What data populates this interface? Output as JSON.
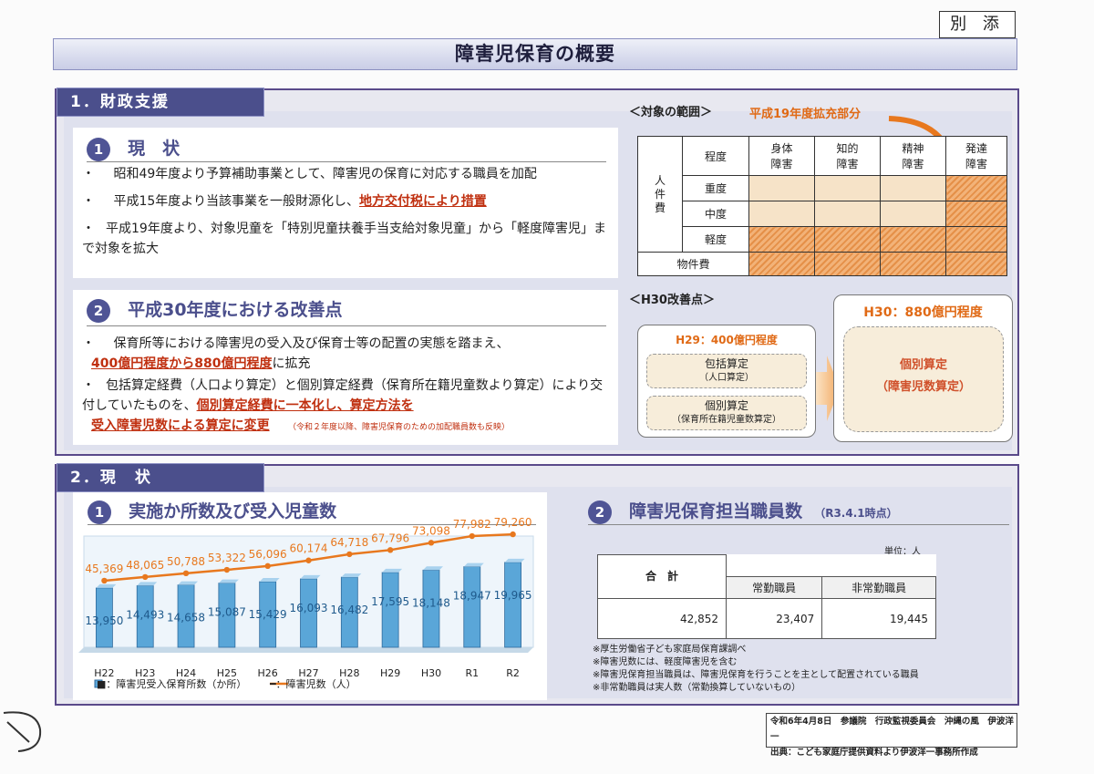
{
  "header": {
    "attachment": "別 添",
    "title": "障害児保育の概要"
  },
  "sec1": {
    "tab": "1．財政支援",
    "current": {
      "num": "1",
      "title": "現　状",
      "bullets": [
        {
          "mark": "・",
          "text": "昭和49年度より予算補助事業として、障害児の保育に対応する職員を加配"
        },
        {
          "mark": "・",
          "pre": "平成15年度より当該事業を一般財源化し、",
          "red": "地方交付税により措置"
        },
        {
          "mark": "・",
          "text": "平成19年度より、対象児童を「特別児童扶養手当支給対象児童」から「軽度障害児」まで対象を拡大"
        }
      ]
    },
    "improve": {
      "num": "2",
      "title": "平成30年度における改善点",
      "b1_mark": "・",
      "b1_text": "保育所等における障害児の受入及び保育士等の配置の実態を踏まえ、",
      "b1_red": "400億円程度から880億円程度",
      "b1_post": "に拡充",
      "b2_mark": "・",
      "b2_pre": "包括算定経費（人口より算定）と個別算定経費（保育所在籍児童数より算定）により交付していたものを、",
      "b2_red1": "個別算定経費に一本化し、算定方法を",
      "b2_red2": "受入障害児数による算定に変更",
      "b2_note": "（令和２年度以降、障害児保育のための加配職員数も反映）"
    },
    "scope": {
      "label": "＜対象の範囲＞",
      "expand": "平成19年度拡充部分",
      "col_head": "程度",
      "cols": [
        "身体\n障害",
        "知的\n障害",
        "精神\n障害",
        "発達\n障害"
      ],
      "row_group": "人\n件\n費",
      "rows": [
        "重度",
        "中度",
        "軽度"
      ],
      "bottom_row": "物件費"
    },
    "h30": {
      "label": "＜H30改善点＞",
      "h29_title": "H29：400億円程度",
      "box1_l1": "包括算定",
      "box1_l2": "（人口算定）",
      "box2_l1": "個別算定",
      "box2_l2": "（保育所在籍児童数算定）",
      "h30_title": "H30：880億円程度",
      "h30_l1": "個別算定",
      "h30_l2": "（障害児数算定）"
    }
  },
  "sec2": {
    "tab": "2．現　状",
    "chart_title_num": "1",
    "chart_title": "実施か所数及び受入児童数",
    "chart_data": {
      "type": "bar",
      "categories": [
        "H22",
        "H23",
        "H24",
        "H25",
        "H26",
        "H27",
        "H28",
        "H29",
        "H30",
        "R1",
        "R2"
      ],
      "series": [
        {
          "name": "■：障害児受入保育所数（か所）",
          "type": "bar",
          "values": [
            13950,
            14493,
            14658,
            15087,
            15429,
            16093,
            16482,
            17595,
            18148,
            18947,
            19965
          ],
          "labels": [
            "13,950",
            "14,493",
            "14,658",
            "15,087",
            "15,429",
            "16,093",
            "16,482",
            "17,595",
            "18,148",
            "18,947",
            "19,965"
          ]
        },
        {
          "name": "━：障害児数（人）",
          "type": "line",
          "values": [
            45369,
            48065,
            50788,
            53322,
            56096,
            60174,
            64718,
            67796,
            73098,
            77982,
            79260
          ],
          "labels": [
            "45,369",
            "48,065",
            "50,788",
            "53,322",
            "56,096",
            "60,174",
            "64,718",
            "67,796",
            "73,098",
            "77,982",
            "79,260"
          ]
        }
      ],
      "colors": {
        "bar": "#5aa6d8",
        "line": "#e8781e"
      }
    },
    "staff": {
      "num": "2",
      "title": "障害児保育担当職員数",
      "title_note": "（R3.4.1時点）",
      "unit": "単位：人",
      "h_total": "合　計",
      "h_regular": "常勤職員",
      "h_nonregular": "非常勤職員",
      "v_total": "42,852",
      "v_regular": "23,407",
      "v_nonregular": "19,445",
      "notes": [
        "※厚生労働省子ども家庭局保育課調べ",
        "※障害児数には、軽度障害児を含む",
        "※障害児保育担当職員は、障害児保育を行うことを主として配置されている職員",
        "※非常勤職員は実人数（常勤換算していないもの）"
      ]
    }
  },
  "footer": {
    "line1": "令和6年4月8日　参議院　行政監視委員会　沖縄の風　伊波洋一",
    "line2": "出典：こども家庭庁提供資料より伊波洋一事務所作成"
  }
}
